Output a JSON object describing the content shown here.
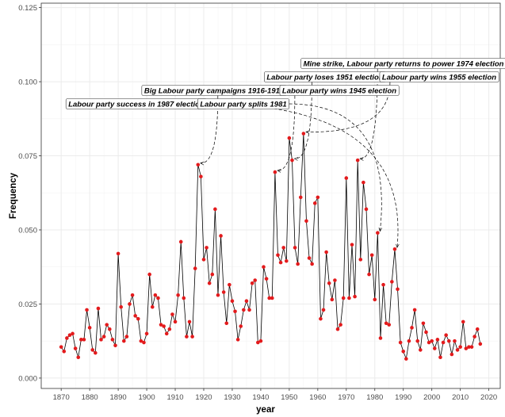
{
  "chart_data": {
    "type": "line",
    "x_label": "year",
    "y_label": "Frequency",
    "x": [
      1870,
      1871,
      1872,
      1873,
      1874,
      1875,
      1876,
      1877,
      1878,
      1879,
      1880,
      1881,
      1882,
      1883,
      1884,
      1885,
      1886,
      1887,
      1888,
      1889,
      1890,
      1891,
      1892,
      1893,
      1894,
      1895,
      1896,
      1897,
      1898,
      1899,
      1900,
      1901,
      1902,
      1903,
      1904,
      1905,
      1906,
      1907,
      1908,
      1909,
      1910,
      1911,
      1912,
      1913,
      1914,
      1915,
      1916,
      1917,
      1918,
      1919,
      1920,
      1921,
      1922,
      1923,
      1924,
      1925,
      1926,
      1927,
      1928,
      1929,
      1930,
      1931,
      1932,
      1933,
      1934,
      1935,
      1936,
      1937,
      1938,
      1939,
      1940,
      1941,
      1942,
      1943,
      1944,
      1945,
      1946,
      1947,
      1948,
      1949,
      1950,
      1951,
      1952,
      1953,
      1954,
      1955,
      1956,
      1957,
      1958,
      1959,
      1960,
      1961,
      1962,
      1963,
      1964,
      1965,
      1966,
      1967,
      1968,
      1969,
      1970,
      1971,
      1972,
      1973,
      1974,
      1975,
      1976,
      1977,
      1978,
      1979,
      1980,
      1981,
      1982,
      1983,
      1984,
      1985,
      1986,
      1987,
      1988,
      1989,
      1990,
      1991,
      1992,
      1993,
      1994,
      1995,
      1996,
      1997,
      1998,
      1999,
      2000,
      2001,
      2002,
      2003,
      2004,
      2005,
      2006,
      2007,
      2008,
      2009,
      2010,
      2011,
      2012,
      2013,
      2014,
      2015,
      2016,
      2017
    ],
    "series": [
      {
        "color": "#000000",
        "point_color": "#e31a1c",
        "values": [
          0.0105,
          0.009,
          0.0135,
          0.0145,
          0.015,
          0.01,
          0.007,
          0.013,
          0.013,
          0.023,
          0.017,
          0.0095,
          0.0085,
          0.0235,
          0.013,
          0.014,
          0.018,
          0.0165,
          0.013,
          0.011,
          0.042,
          0.024,
          0.0125,
          0.014,
          0.025,
          0.028,
          0.021,
          0.02,
          0.0125,
          0.012,
          0.015,
          0.035,
          0.024,
          0.028,
          0.027,
          0.018,
          0.0175,
          0.015,
          0.0165,
          0.0215,
          0.019,
          0.028,
          0.046,
          0.027,
          0.014,
          0.019,
          0.014,
          0.037,
          0.072,
          0.068,
          0.04,
          0.044,
          0.032,
          0.035,
          0.057,
          0.028,
          0.048,
          0.029,
          0.0185,
          0.0315,
          0.026,
          0.0225,
          0.013,
          0.0175,
          0.023,
          0.026,
          0.023,
          0.032,
          0.033,
          0.012,
          0.0125,
          0.0375,
          0.0335,
          0.027,
          0.027,
          0.0695,
          0.0415,
          0.039,
          0.044,
          0.0395,
          0.081,
          0.0735,
          0.044,
          0.0385,
          0.061,
          0.0825,
          0.053,
          0.0405,
          0.0385,
          0.059,
          0.061,
          0.02,
          0.023,
          0.0425,
          0.032,
          0.0265,
          0.033,
          0.0165,
          0.018,
          0.027,
          0.0675,
          0.027,
          0.045,
          0.0275,
          0.0735,
          0.04,
          0.066,
          0.057,
          0.035,
          0.0415,
          0.0265,
          0.049,
          0.0135,
          0.0315,
          0.0185,
          0.018,
          0.0325,
          0.0435,
          0.03,
          0.012,
          0.009,
          0.0065,
          0.0125,
          0.017,
          0.023,
          0.0125,
          0.0095,
          0.0185,
          0.0155,
          0.012,
          0.0125,
          0.01,
          0.013,
          0.007,
          0.012,
          0.0145,
          0.0125,
          0.008,
          0.0125,
          0.0095,
          0.0105,
          0.019,
          0.01,
          0.0105,
          0.0105,
          0.014,
          0.0165,
          0.0115
        ]
      }
    ],
    "annotations": [
      {
        "text": "Mine strike, Labour party returns to power 1974 election",
        "x": 1974
      },
      {
        "text": "Labour party loses 1951 election",
        "x": 1951
      },
      {
        "text": "Labour party wins 1955 election",
        "x": 1955
      },
      {
        "text": "Big Labour party campaigns 1916-1918",
        "x": 1918
      },
      {
        "text": "Labour party wins 1945 election",
        "x": 1945
      },
      {
        "text": "Labour party success in 1987 election",
        "x": 1987
      },
      {
        "text": "Labour party splits 1981",
        "x": 1981
      }
    ],
    "xlim": [
      1863,
      2024
    ],
    "ylim": [
      -0.0035,
      0.1265
    ],
    "xticks": [
      1870,
      1880,
      1890,
      1900,
      1910,
      1920,
      1930,
      1940,
      1950,
      1960,
      1970,
      1980,
      1990,
      2000,
      2010,
      2020
    ],
    "yticks": [
      {
        "value": 0,
        "label": "0.000"
      },
      {
        "value": 0.025,
        "label": "0.025"
      },
      {
        "value": 0.05,
        "label": "0.050"
      },
      {
        "value": 0.075,
        "label": "0.075"
      },
      {
        "value": 0.1,
        "label": "0.100"
      },
      {
        "value": 0.125,
        "label": "0.125"
      }
    ],
    "grid": true
  }
}
